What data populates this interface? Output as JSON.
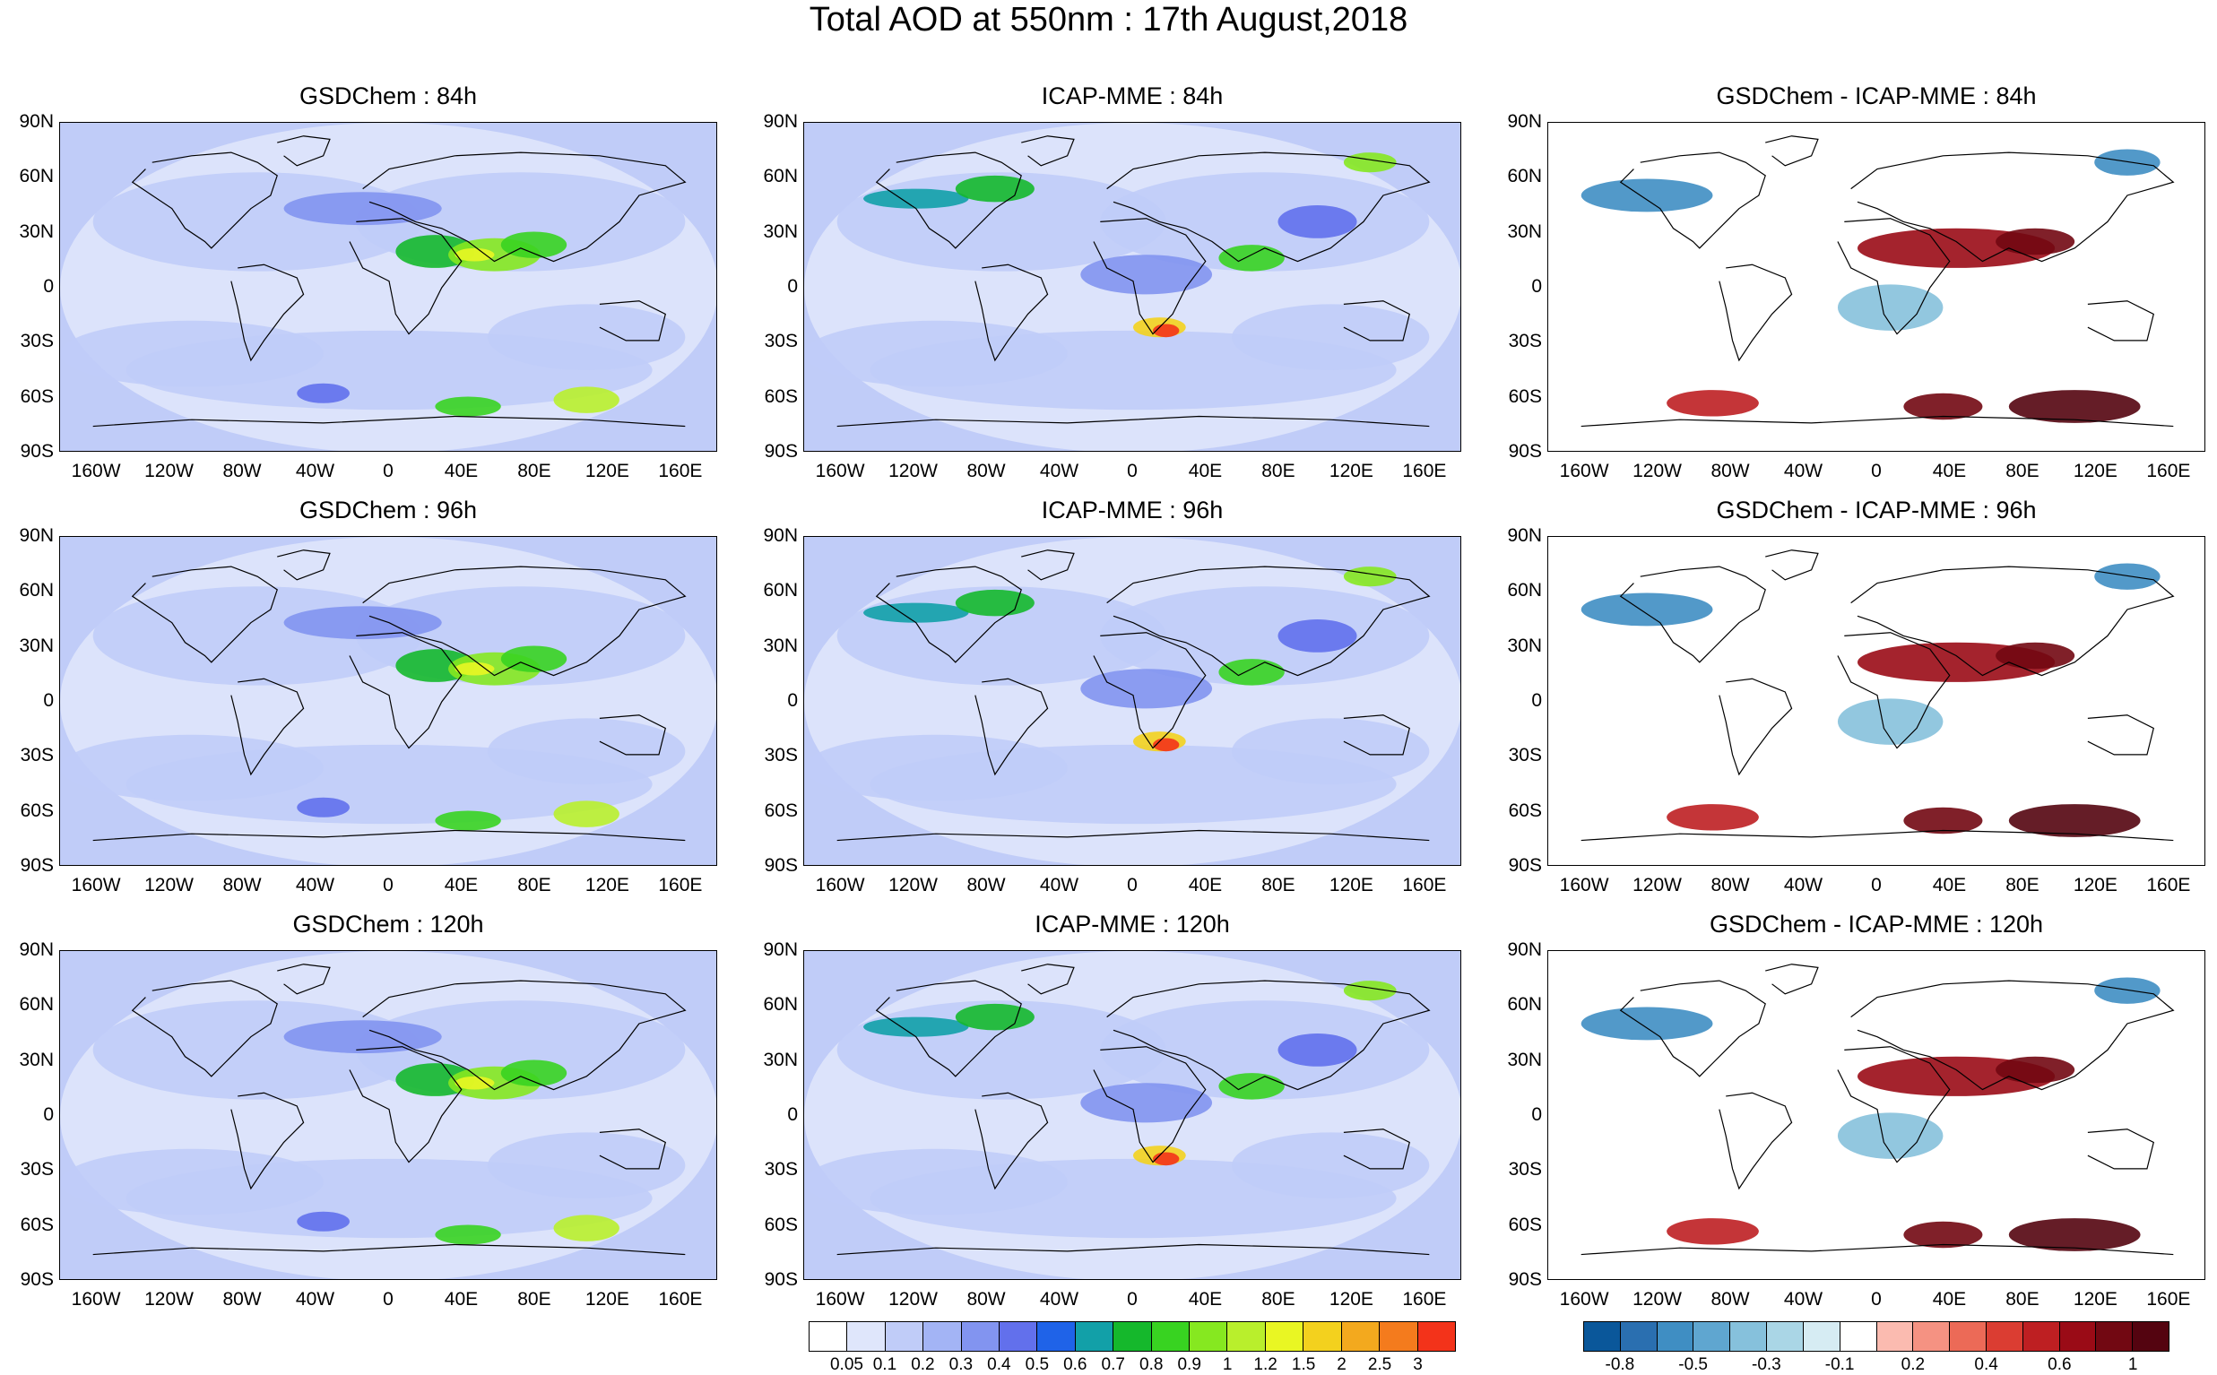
{
  "figure": {
    "title": "Total AOD at 550nm : 17th August,2018"
  },
  "lat_labels": [
    "90N",
    "60N",
    "30N",
    "0",
    "30S",
    "60S",
    "90S"
  ],
  "lon_labels": [
    "160W",
    "120W",
    "80W",
    "40W",
    "0",
    "40E",
    "80E",
    "120E",
    "160E"
  ],
  "panels": [
    {
      "title": "GSDChem : 84h",
      "kind": "aod"
    },
    {
      "title": "ICAP-MME : 84h",
      "kind": "aod"
    },
    {
      "title": "GSDChem - ICAP-MME : 84h",
      "kind": "diff"
    },
    {
      "title": "GSDChem : 96h",
      "kind": "aod"
    },
    {
      "title": "ICAP-MME : 96h",
      "kind": "aod"
    },
    {
      "title": "GSDChem - ICAP-MME : 96h",
      "kind": "diff"
    },
    {
      "title": "GSDChem : 120h",
      "kind": "aod"
    },
    {
      "title": "ICAP-MME : 120h",
      "kind": "aod"
    },
    {
      "title": "GSDChem - ICAP-MME : 120h",
      "kind": "diff"
    }
  ],
  "aod_colorbar": {
    "labels": [
      "0.05",
      "0.1",
      "0.2",
      "0.3",
      "0.4",
      "0.5",
      "0.6",
      "0.7",
      "0.8",
      "0.9",
      "1",
      "1.2",
      "1.5",
      "2",
      "2.5",
      "3"
    ],
    "colors": [
      "#ffffff",
      "#dfe6fb",
      "#c0ccf8",
      "#a3b4f5",
      "#8294f0",
      "#6270ec",
      "#1f63e8",
      "#12a0a8",
      "#15b82c",
      "#38d321",
      "#86e820",
      "#b9ef2c",
      "#e9f623",
      "#f3d11e",
      "#f3a91e",
      "#f47b1d",
      "#f3331a"
    ]
  },
  "diff_colorbar": {
    "labels": [
      "-0.8",
      "-0.5",
      "-0.3",
      "-0.1",
      "0.2",
      "0.4",
      "0.6",
      "1"
    ],
    "colors": [
      "#0a579a",
      "#2a6fb0",
      "#3f8ec3",
      "#5fa6d0",
      "#86c1dc",
      "#aad6e6",
      "#d6ecf3",
      "#ffffff",
      "#fbbbb0",
      "#f59282",
      "#ec6a57",
      "#db3d32",
      "#be1f22",
      "#9a0b16",
      "#720812",
      "#540410"
    ]
  }
}
